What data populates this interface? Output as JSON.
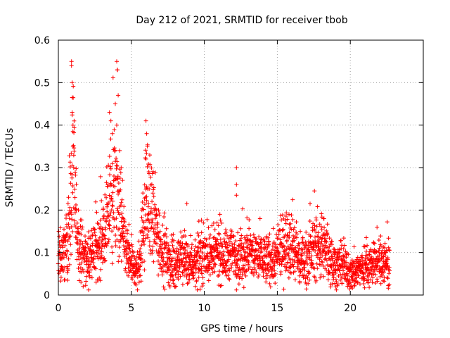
{
  "chart_data": {
    "type": "scatter",
    "title": "Day 212 of 2021, SRMTID for receiver tbob",
    "xlabel": "GPS time / hours",
    "ylabel": "SRMTID / TECUs",
    "xlim": [
      0,
      25
    ],
    "ylim": [
      0,
      0.6
    ],
    "xticks": [
      "0",
      "5",
      "10",
      "15",
      "20"
    ],
    "yticks": [
      "0",
      "0.1",
      "0.2",
      "0.3",
      "0.4",
      "0.5",
      "0.6"
    ],
    "grid": true,
    "marker": "+",
    "series": [
      {
        "name": "SRMTID",
        "color": "#ff0000",
        "profile": [
          [
            0.0,
            0.08
          ],
          [
            0.3,
            0.1
          ],
          [
            0.6,
            0.12
          ],
          [
            0.85,
            0.22
          ],
          [
            1.0,
            0.3
          ],
          [
            1.2,
            0.18
          ],
          [
            1.5,
            0.1
          ],
          [
            2.0,
            0.08
          ],
          [
            2.5,
            0.1
          ],
          [
            3.0,
            0.13
          ],
          [
            3.5,
            0.2
          ],
          [
            4.0,
            0.24
          ],
          [
            4.5,
            0.12
          ],
          [
            5.0,
            0.07
          ],
          [
            5.5,
            0.06
          ],
          [
            6.0,
            0.22
          ],
          [
            6.5,
            0.18
          ],
          [
            7.0,
            0.12
          ],
          [
            7.5,
            0.08
          ],
          [
            8.0,
            0.07
          ],
          [
            8.5,
            0.09
          ],
          [
            9.0,
            0.08
          ],
          [
            9.5,
            0.07
          ],
          [
            10.0,
            0.1
          ],
          [
            10.5,
            0.09
          ],
          [
            11.0,
            0.1
          ],
          [
            11.5,
            0.09
          ],
          [
            12.0,
            0.1
          ],
          [
            12.5,
            0.09
          ],
          [
            13.0,
            0.1
          ],
          [
            13.5,
            0.09
          ],
          [
            14.0,
            0.09
          ],
          [
            14.5,
            0.08
          ],
          [
            15.0,
            0.09
          ],
          [
            15.5,
            0.12
          ],
          [
            16.0,
            0.13
          ],
          [
            16.5,
            0.08
          ],
          [
            17.0,
            0.09
          ],
          [
            17.5,
            0.11
          ],
          [
            18.0,
            0.12
          ],
          [
            18.5,
            0.09
          ],
          [
            19.0,
            0.07
          ],
          [
            19.5,
            0.07
          ],
          [
            20.0,
            0.05
          ],
          [
            20.5,
            0.06
          ],
          [
            21.0,
            0.07
          ],
          [
            21.5,
            0.07
          ],
          [
            22.0,
            0.08
          ],
          [
            22.7,
            0.08
          ]
        ],
        "peaks": [
          [
            0.9,
            0.55
          ],
          [
            0.9,
            0.54
          ],
          [
            0.95,
            0.5
          ],
          [
            0.95,
            0.43
          ],
          [
            1.0,
            0.4
          ],
          [
            1.0,
            0.35
          ],
          [
            1.05,
            0.3
          ],
          [
            3.5,
            0.43
          ],
          [
            3.6,
            0.41
          ],
          [
            3.7,
            0.38
          ],
          [
            3.9,
            0.45
          ],
          [
            4.0,
            0.55
          ],
          [
            4.05,
            0.53
          ],
          [
            4.1,
            0.47
          ],
          [
            4.0,
            0.4
          ],
          [
            4.2,
            0.34
          ],
          [
            4.3,
            0.3
          ],
          [
            4.4,
            0.27
          ],
          [
            6.0,
            0.41
          ],
          [
            6.05,
            0.38
          ],
          [
            6.1,
            0.35
          ],
          [
            6.0,
            0.32
          ],
          [
            6.2,
            0.29
          ],
          [
            6.4,
            0.26
          ],
          [
            12.2,
            0.3
          ],
          [
            12.2,
            0.26
          ],
          [
            12.2,
            0.235
          ],
          [
            8.8,
            0.215
          ],
          [
            15.8,
            0.19
          ],
          [
            18.2,
            0.18
          ],
          [
            21.1,
            0.135
          ]
        ],
        "count": 2400,
        "x_range": [
          0,
          22.7
        ]
      }
    ]
  }
}
